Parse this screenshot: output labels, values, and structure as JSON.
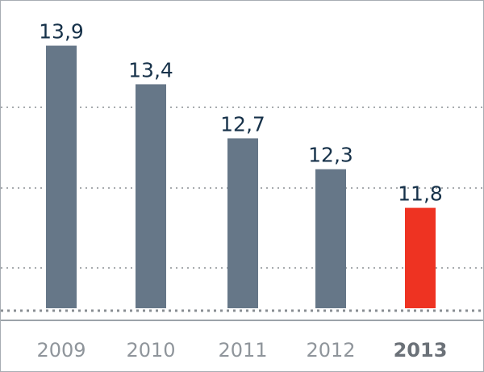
{
  "chart_data": {
    "type": "bar",
    "categories": [
      "2009",
      "2010",
      "2011",
      "2012",
      "2013"
    ],
    "values": [
      13.9,
      13.4,
      12.7,
      12.3,
      11.8
    ],
    "value_labels": [
      "13,9",
      "13,4",
      "12,7",
      "12,3",
      "11,8"
    ],
    "highlight_category": "2013",
    "title": "",
    "xlabel": "",
    "ylabel": "",
    "ylim": [
      10.5,
      14.0
    ],
    "grid": true,
    "legend": "none",
    "colors": {
      "bar": "#667788",
      "highlight": "#ee3322",
      "grid": "#8a8f94",
      "axis": "#9ca3a9"
    }
  }
}
